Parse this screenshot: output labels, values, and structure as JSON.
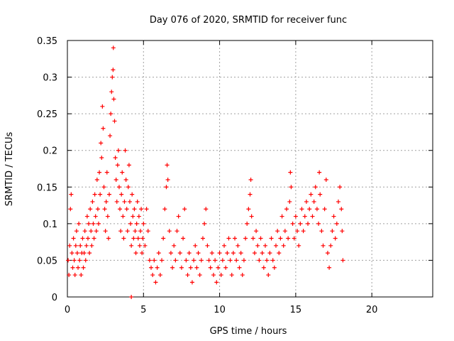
{
  "chart_data": {
    "type": "scatter",
    "title": "Day 076 of 2020, SRMTID for receiver func",
    "xlabel": "GPS time / hours",
    "ylabel": "SRMTID / TECUs",
    "xlim": [
      0,
      24
    ],
    "ylim": [
      0,
      0.35
    ],
    "xticks": [
      0,
      5,
      10,
      15,
      20
    ],
    "xtick_labels": [
      "0",
      "5",
      "10",
      "15",
      "20"
    ],
    "yticks": [
      0,
      0.05,
      0.1,
      0.15,
      0.2,
      0.25,
      0.3,
      0.35
    ],
    "ytick_labels": [
      "0",
      "0.05",
      "0.1",
      "0.15",
      "0.2",
      "0.25",
      "0.3",
      "0.35"
    ],
    "grid": true,
    "marker": "plus",
    "color": "#ff0000",
    "series": [
      {
        "name": "SRMTID",
        "points": [
          [
            0.05,
            0.05
          ],
          [
            0.1,
            0.03
          ],
          [
            0.15,
            0.07
          ],
          [
            0.2,
            0.12
          ],
          [
            0.25,
            0.14
          ],
          [
            0.3,
            0.06
          ],
          [
            0.35,
            0.04
          ],
          [
            0.4,
            0.08
          ],
          [
            0.45,
            0.05
          ],
          [
            0.5,
            0.03
          ],
          [
            0.55,
            0.07
          ],
          [
            0.6,
            0.09
          ],
          [
            0.65,
            0.06
          ],
          [
            0.7,
            0.04
          ],
          [
            0.75,
            0.1
          ],
          [
            0.8,
            0.05
          ],
          [
            0.85,
            0.07
          ],
          [
            0.9,
            0.03
          ],
          [
            0.95,
            0.06
          ],
          [
            1.0,
            0.08
          ],
          [
            1.05,
            0.04
          ],
          [
            1.1,
            0.06
          ],
          [
            1.15,
            0.09
          ],
          [
            1.2,
            0.05
          ],
          [
            1.25,
            0.07
          ],
          [
            1.3,
            0.11
          ],
          [
            1.35,
            0.08
          ],
          [
            1.4,
            0.1
          ],
          [
            1.45,
            0.06
          ],
          [
            1.5,
            0.12
          ],
          [
            1.55,
            0.09
          ],
          [
            1.6,
            0.07
          ],
          [
            1.65,
            0.13
          ],
          [
            1.7,
            0.1
          ],
          [
            1.75,
            0.08
          ],
          [
            1.8,
            0.14
          ],
          [
            1.85,
            0.11
          ],
          [
            1.9,
            0.09
          ],
          [
            1.95,
            0.16
          ],
          [
            2.0,
            0.12
          ],
          [
            2.05,
            0.1
          ],
          [
            2.1,
            0.17
          ],
          [
            2.15,
            0.14
          ],
          [
            2.2,
            0.21
          ],
          [
            2.25,
            0.19
          ],
          [
            2.3,
            0.26
          ],
          [
            2.35,
            0.23
          ],
          [
            2.4,
            0.15
          ],
          [
            2.45,
            0.12
          ],
          [
            2.5,
            0.09
          ],
          [
            2.55,
            0.13
          ],
          [
            2.6,
            0.17
          ],
          [
            2.65,
            0.11
          ],
          [
            2.7,
            0.08
          ],
          [
            2.75,
            0.14
          ],
          [
            2.8,
            0.22
          ],
          [
            2.85,
            0.25
          ],
          [
            2.9,
            0.28
          ],
          [
            2.95,
            0.3
          ],
          [
            3.0,
            0.31
          ],
          [
            3.02,
            0.34
          ],
          [
            3.05,
            0.27
          ],
          [
            3.1,
            0.24
          ],
          [
            3.15,
            0.19
          ],
          [
            3.2,
            0.16
          ],
          [
            3.25,
            0.13
          ],
          [
            3.3,
            0.18
          ],
          [
            3.35,
            0.2
          ],
          [
            3.4,
            0.15
          ],
          [
            3.45,
            0.12
          ],
          [
            3.5,
            0.09
          ],
          [
            3.55,
            0.14
          ],
          [
            3.6,
            0.17
          ],
          [
            3.65,
            0.11
          ],
          [
            3.7,
            0.08
          ],
          [
            3.75,
            0.13
          ],
          [
            3.8,
            0.2
          ],
          [
            3.85,
            0.16
          ],
          [
            3.9,
            0.12
          ],
          [
            3.95,
            0.09
          ],
          [
            4.0,
            0.15
          ],
          [
            4.05,
            0.18
          ],
          [
            4.1,
            0.13
          ],
          [
            4.15,
            0.1
          ],
          [
            4.2,
            0.07
          ],
          [
            4.25,
            0.14
          ],
          [
            4.3,
            0.11
          ],
          [
            4.35,
            0.08
          ],
          [
            4.4,
            0.12
          ],
          [
            4.45,
            0.09
          ],
          [
            4.5,
            0.06
          ],
          [
            4.55,
            0.1
          ],
          [
            4.6,
            0.13
          ],
          [
            4.65,
            0.08
          ],
          [
            4.7,
            0.11
          ],
          [
            4.75,
            0.07
          ],
          [
            4.8,
            0.09
          ],
          [
            4.85,
            0.12
          ],
          [
            4.9,
            0.06
          ],
          [
            4.95,
            0.08
          ],
          [
            5.0,
            0.1
          ],
          [
            5.1,
            0.07
          ],
          [
            5.2,
            0.12
          ],
          [
            5.3,
            0.09
          ],
          [
            5.4,
            0.05
          ],
          [
            5.5,
            0.04
          ],
          [
            5.6,
            0.03
          ],
          [
            5.7,
            0.05
          ],
          [
            5.8,
            0.02
          ],
          [
            5.9,
            0.04
          ],
          [
            6.0,
            0.06
          ],
          [
            6.1,
            0.03
          ],
          [
            6.2,
            0.05
          ],
          [
            6.3,
            0.08
          ],
          [
            6.4,
            0.12
          ],
          [
            6.5,
            0.15
          ],
          [
            6.55,
            0.18
          ],
          [
            6.6,
            0.16
          ],
          [
            6.7,
            0.09
          ],
          [
            6.8,
            0.06
          ],
          [
            6.9,
            0.04
          ],
          [
            7.0,
            0.07
          ],
          [
            7.1,
            0.05
          ],
          [
            7.2,
            0.09
          ],
          [
            7.3,
            0.11
          ],
          [
            7.4,
            0.06
          ],
          [
            7.5,
            0.04
          ],
          [
            7.6,
            0.08
          ],
          [
            7.7,
            0.12
          ],
          [
            7.8,
            0.05
          ],
          [
            7.9,
            0.03
          ],
          [
            8.0,
            0.06
          ],
          [
            8.1,
            0.04
          ],
          [
            8.2,
            0.02
          ],
          [
            8.3,
            0.05
          ],
          [
            8.4,
            0.07
          ],
          [
            8.5,
            0.04
          ],
          [
            8.6,
            0.06
          ],
          [
            8.7,
            0.03
          ],
          [
            8.8,
            0.05
          ],
          [
            8.9,
            0.08
          ],
          [
            9.0,
            0.1
          ],
          [
            9.1,
            0.12
          ],
          [
            9.2,
            0.07
          ],
          [
            9.3,
            0.05
          ],
          [
            9.4,
            0.04
          ],
          [
            9.5,
            0.06
          ],
          [
            9.6,
            0.03
          ],
          [
            9.7,
            0.05
          ],
          [
            9.8,
            0.02
          ],
          [
            9.9,
            0.04
          ],
          [
            10.0,
            0.06
          ],
          [
            10.1,
            0.03
          ],
          [
            10.2,
            0.05
          ],
          [
            10.3,
            0.07
          ],
          [
            10.4,
            0.04
          ],
          [
            10.5,
            0.06
          ],
          [
            10.6,
            0.08
          ],
          [
            10.7,
            0.05
          ],
          [
            10.8,
            0.03
          ],
          [
            10.9,
            0.06
          ],
          [
            11.0,
            0.08
          ],
          [
            11.1,
            0.05
          ],
          [
            11.2,
            0.07
          ],
          [
            11.3,
            0.04
          ],
          [
            11.4,
            0.06
          ],
          [
            11.5,
            0.03
          ],
          [
            11.6,
            0.05
          ],
          [
            11.7,
            0.08
          ],
          [
            11.8,
            0.1
          ],
          [
            11.9,
            0.12
          ],
          [
            12.0,
            0.14
          ],
          [
            12.05,
            0.16
          ],
          [
            12.1,
            0.11
          ],
          [
            12.2,
            0.08
          ],
          [
            12.3,
            0.06
          ],
          [
            12.4,
            0.09
          ],
          [
            12.5,
            0.07
          ],
          [
            12.6,
            0.05
          ],
          [
            12.7,
            0.08
          ],
          [
            12.8,
            0.06
          ],
          [
            12.9,
            0.04
          ],
          [
            13.0,
            0.07
          ],
          [
            13.1,
            0.05
          ],
          [
            13.2,
            0.03
          ],
          [
            13.3,
            0.06
          ],
          [
            13.4,
            0.08
          ],
          [
            13.5,
            0.05
          ],
          [
            13.6,
            0.04
          ],
          [
            13.7,
            0.07
          ],
          [
            13.8,
            0.09
          ],
          [
            13.9,
            0.06
          ],
          [
            14.0,
            0.08
          ],
          [
            14.1,
            0.11
          ],
          [
            14.2,
            0.07
          ],
          [
            14.3,
            0.09
          ],
          [
            14.4,
            0.12
          ],
          [
            14.5,
            0.08
          ],
          [
            14.6,
            0.13
          ],
          [
            14.65,
            0.17
          ],
          [
            14.7,
            0.15
          ],
          [
            14.8,
            0.1
          ],
          [
            14.9,
            0.08
          ],
          [
            15.0,
            0.11
          ],
          [
            15.1,
            0.09
          ],
          [
            15.2,
            0.07
          ],
          [
            15.3,
            0.1
          ],
          [
            15.4,
            0.12
          ],
          [
            15.5,
            0.09
          ],
          [
            15.6,
            0.11
          ],
          [
            15.7,
            0.13
          ],
          [
            15.8,
            0.1
          ],
          [
            15.9,
            0.12
          ],
          [
            16.0,
            0.14
          ],
          [
            16.1,
            0.11
          ],
          [
            16.2,
            0.13
          ],
          [
            16.3,
            0.15
          ],
          [
            16.4,
            0.12
          ],
          [
            16.5,
            0.1
          ],
          [
            16.55,
            0.17
          ],
          [
            16.6,
            0.14
          ],
          [
            16.7,
            0.09
          ],
          [
            16.8,
            0.07
          ],
          [
            16.9,
            0.12
          ],
          [
            17.0,
            0.16
          ],
          [
            17.1,
            0.06
          ],
          [
            17.2,
            0.04
          ],
          [
            17.3,
            0.07
          ],
          [
            17.4,
            0.09
          ],
          [
            17.5,
            0.11
          ],
          [
            17.6,
            0.08
          ],
          [
            17.7,
            0.1
          ],
          [
            17.8,
            0.13
          ],
          [
            17.9,
            0.15
          ],
          [
            18.0,
            0.12
          ],
          [
            18.05,
            0.09
          ],
          [
            18.1,
            0.05
          ],
          [
            4.2,
            0.0
          ]
        ]
      }
    ]
  }
}
